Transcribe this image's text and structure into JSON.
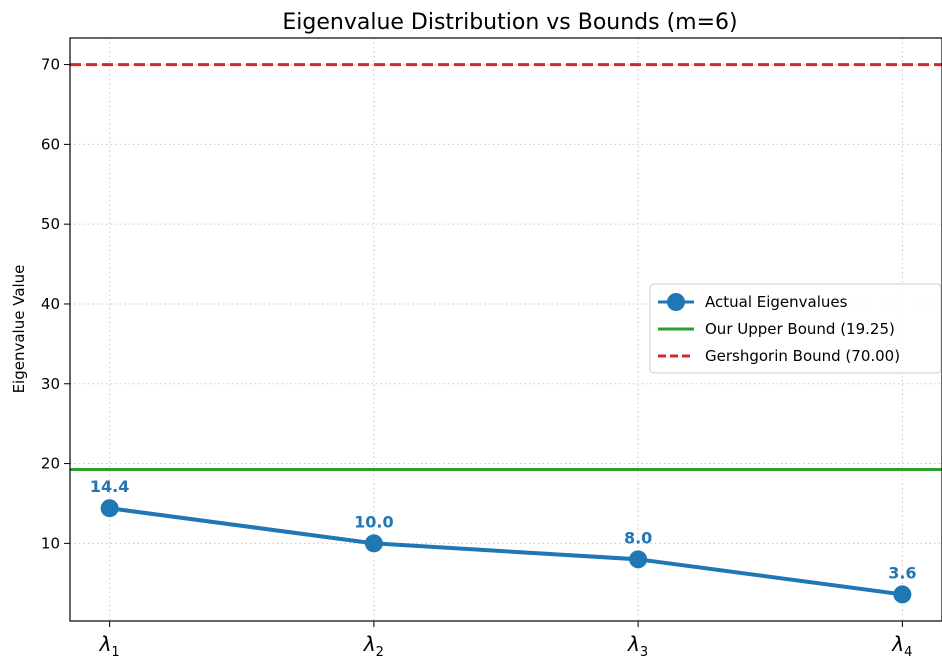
{
  "chart_data": {
    "type": "line",
    "title": "Eigenvalue Distribution vs Bounds (m=6)",
    "xlabel": "",
    "ylabel": "Eigenvalue Value",
    "categories": [
      {
        "symbol": "λ",
        "sub": "1"
      },
      {
        "symbol": "λ",
        "sub": "2"
      },
      {
        "symbol": "λ",
        "sub": "3"
      },
      {
        "symbol": "λ",
        "sub": "4"
      }
    ],
    "series": [
      {
        "name": "Actual Eigenvalues",
        "values": [
          14.4,
          10.0,
          8.0,
          3.6
        ],
        "data_labels": [
          "14.4",
          "10.0",
          "8.0",
          "3.6"
        ],
        "color": "#1f77b4",
        "marker": "circle"
      }
    ],
    "reference_lines": [
      {
        "name": "Our Upper Bound (19.25)",
        "y": 19.25,
        "color": "#2ca02c",
        "style": "solid"
      },
      {
        "name": "Gershgorin Bound (70.00)",
        "y": 70.0,
        "color": "#d62728",
        "style": "dashed"
      }
    ],
    "yticks": [
      10,
      20,
      30,
      40,
      50,
      60,
      70
    ],
    "ylim": [
      0.27,
      73.33
    ],
    "xlim": [
      -0.15,
      3.15
    ],
    "grid": true,
    "legend_position": "center-right"
  }
}
